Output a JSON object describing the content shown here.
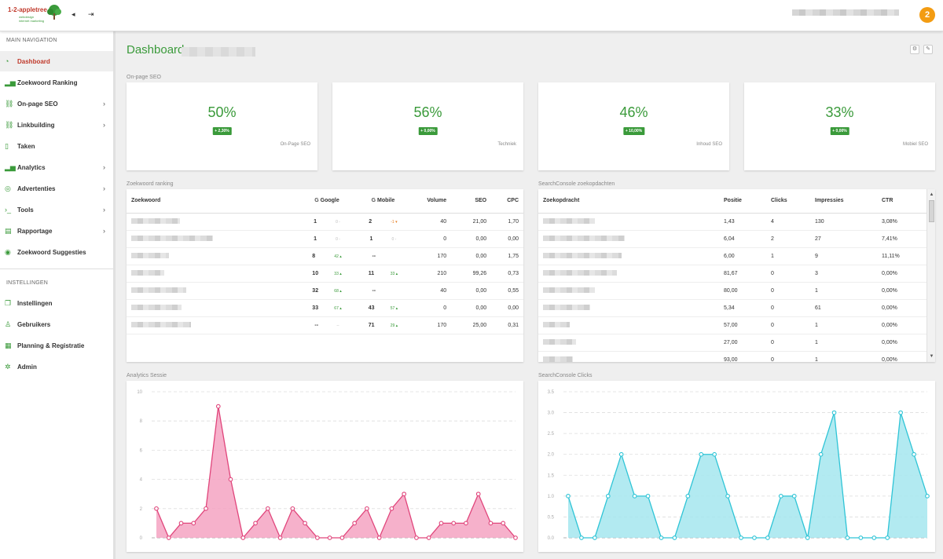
{
  "topbar": {
    "logo_text": "1-2-appletree",
    "logo_tag1": "webdesign",
    "logo_tag2": "internet marketing",
    "notifications": "2"
  },
  "sidebar": {
    "main_heading": "MAIN NAVIGATION",
    "settings_heading": "INSTELLINGEN",
    "items": [
      {
        "label": "Dashboard",
        "icon": "dashboard-icon",
        "active": true
      },
      {
        "label": "Zoekwoord Ranking",
        "icon": "bar-chart-icon"
      },
      {
        "label": "On-page SEO",
        "icon": "link-icon",
        "chevron": true
      },
      {
        "label": "Linkbuilding",
        "icon": "link-icon",
        "chevron": true
      },
      {
        "label": "Taken",
        "icon": "bookmark-icon"
      },
      {
        "label": "Analytics",
        "icon": "bar-chart-icon",
        "chevron": true
      },
      {
        "label": "Advertenties",
        "icon": "target-icon",
        "chevron": true
      },
      {
        "label": "Tools",
        "icon": "terminal-icon",
        "chevron": true
      },
      {
        "label": "Rapportage",
        "icon": "report-icon",
        "chevron": true
      },
      {
        "label": "Zoekwoord Suggesties",
        "icon": "eye-icon"
      }
    ],
    "settings_items": [
      {
        "label": "Instellingen",
        "icon": "copy-icon"
      },
      {
        "label": "Gebruikers",
        "icon": "user-icon"
      },
      {
        "label": "Planning & Registratie",
        "icon": "calendar-icon"
      },
      {
        "label": "Admin",
        "icon": "gear-icon"
      }
    ]
  },
  "page": {
    "title": "Dashboard"
  },
  "sections": {
    "onpage": "On-page SEO",
    "ranking": "Zoekwoord ranking",
    "searchconsole": "SearchConsole zoekopdachten",
    "analytics": "Analytics Sessie",
    "sc_clicks": "SearchConsole Clicks"
  },
  "kpis": [
    {
      "value": "50%",
      "change": "+ 2,30%",
      "label": "On-Page SEO"
    },
    {
      "value": "56%",
      "change": "+ 0,00%",
      "label": "Techniek"
    },
    {
      "value": "46%",
      "change": "+ 10,00%",
      "label": "Inhoud SEO"
    },
    {
      "value": "33%",
      "change": "+ 0,00%",
      "label": "Mobiel SEO"
    }
  ],
  "ranking": {
    "headers": [
      "Zoekwoord",
      "Google",
      "Mobile",
      "Volume",
      "SEO",
      "CPC"
    ],
    "rows": [
      {
        "google": "1",
        "gchg": "0 -",
        "mobile": "2",
        "mchg": "-1 ▾",
        "volume": "40",
        "seo": "21,00",
        "cpc": "1,70"
      },
      {
        "google": "1",
        "gchg": "0 -",
        "mobile": "1",
        "mchg": "0 -",
        "volume": "0",
        "seo": "0,00",
        "cpc": "0,00"
      },
      {
        "google": "8",
        "gchg": "42 ▴",
        "mobile": "--",
        "mchg": "",
        "volume": "170",
        "seo": "0,00",
        "cpc": "1,75"
      },
      {
        "google": "10",
        "gchg": "33 ▴",
        "mobile": "11",
        "mchg": "33 ▴",
        "volume": "210",
        "seo": "99,26",
        "cpc": "0,73"
      },
      {
        "google": "32",
        "gchg": "68 ▴",
        "mobile": "--",
        "mchg": "",
        "volume": "40",
        "seo": "0,00",
        "cpc": "0,55"
      },
      {
        "google": "33",
        "gchg": "67 ▴",
        "mobile": "43",
        "mchg": "57 ▴",
        "volume": "0",
        "seo": "0,00",
        "cpc": "0,00"
      },
      {
        "google": "--",
        "gchg": "--",
        "mobile": "71",
        "mchg": "29 ▴",
        "volume": "170",
        "seo": "25,00",
        "cpc": "0,31"
      }
    ]
  },
  "searchconsole": {
    "headers": [
      "Zoekopdracht",
      "Positie",
      "Clicks",
      "Impressies",
      "CTR"
    ],
    "rows": [
      {
        "pos": "1,43",
        "clicks": "4",
        "impr": "130",
        "ctr": "3,08%"
      },
      {
        "pos": "6,04",
        "clicks": "2",
        "impr": "27",
        "ctr": "7,41%"
      },
      {
        "pos": "6,00",
        "clicks": "1",
        "impr": "9",
        "ctr": "11,11%"
      },
      {
        "pos": "81,67",
        "clicks": "0",
        "impr": "3",
        "ctr": "0,00%"
      },
      {
        "pos": "80,00",
        "clicks": "0",
        "impr": "1",
        "ctr": "0,00%"
      },
      {
        "pos": "5,34",
        "clicks": "0",
        "impr": "61",
        "ctr": "0,00%"
      },
      {
        "pos": "57,00",
        "clicks": "0",
        "impr": "1",
        "ctr": "0,00%"
      },
      {
        "pos": "27,00",
        "clicks": "0",
        "impr": "1",
        "ctr": "0,00%"
      },
      {
        "pos": "93,00",
        "clicks": "0",
        "impr": "1",
        "ctr": "0,00%"
      }
    ]
  },
  "chart_data": [
    {
      "type": "area",
      "title": "Analytics Sessie",
      "color": "#e0457b",
      "fill": "#f5a3c2",
      "ylim": [
        0,
        10
      ],
      "yticks": [
        "0",
        "2",
        "4",
        "6",
        "8",
        "10"
      ],
      "values": [
        2,
        0,
        1,
        1,
        2,
        9,
        4,
        0,
        1,
        2,
        0,
        2,
        1,
        0,
        0,
        0,
        1,
        2,
        0,
        2,
        3,
        0,
        0,
        1,
        1,
        1,
        3,
        1,
        1,
        0
      ]
    },
    {
      "type": "area",
      "title": "SearchConsole Clicks",
      "color": "#2ec4d6",
      "fill": "#a4e6ee",
      "ylim": [
        0,
        3.5
      ],
      "yticks": [
        "0.0",
        "0.5",
        "1.0",
        "1.5",
        "2.0",
        "2.5",
        "3.0",
        "3.5"
      ],
      "values": [
        1,
        0,
        0,
        1,
        2,
        1,
        1,
        0,
        0,
        1,
        2,
        2,
        1,
        0,
        0,
        0,
        1,
        1,
        0,
        2,
        3,
        0,
        0,
        0,
        0,
        3,
        2,
        1
      ]
    }
  ]
}
